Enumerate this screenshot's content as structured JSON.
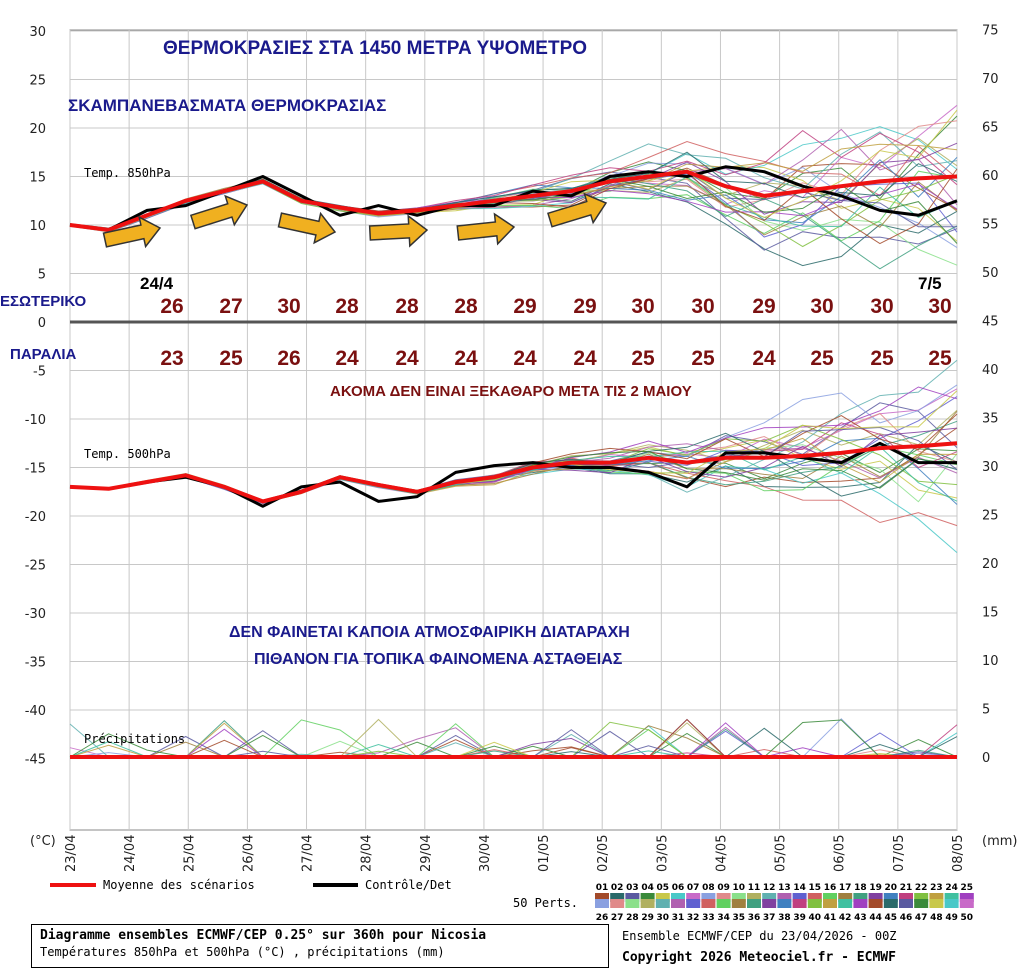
{
  "chart_data": {
    "type": "line",
    "title": "ΘΕΡΜΟΚΡΑΣΙΕΣ ΣΤΑ 1450 ΜΕΤΡΑ ΥΨΟΜΕΤΡΟ",
    "subtitle": "ΣΚΑΜΠΑΝΕΒΑΣΜΑΤΑ ΘΕΡΜΟΚΡΑΣΙΑΣ",
    "x_ticks": [
      "23/04",
      "24/04",
      "25/04",
      "26/04",
      "27/04",
      "28/04",
      "29/04",
      "30/04",
      "01/05",
      "02/05",
      "03/05",
      "04/05",
      "05/05",
      "06/05",
      "07/05",
      "08/05"
    ],
    "left_axis": {
      "unit": "(°C)",
      "ticks": [
        "30",
        "25",
        "20",
        "15",
        "10",
        "5",
        "0",
        "-5",
        "-10",
        "-15",
        "-20",
        "-25",
        "-30",
        "-35",
        "-40",
        "-45"
      ],
      "ylim": [
        -45,
        30
      ]
    },
    "right_axis": {
      "unit": "(mm)",
      "ticks": [
        "75",
        "70",
        "65",
        "60",
        "55",
        "50",
        "45",
        "40",
        "35",
        "30",
        "25",
        "20",
        "15",
        "10",
        "5",
        "0"
      ]
    },
    "panel_labels": {
      "t850": "Temp. 850hPa",
      "t500": "Temp. 500hPa",
      "precip": "Précipitations"
    },
    "series": [
      {
        "name": "Moyenne des scénarios",
        "color": "#ee1111",
        "t850": [
          [
            0,
            10
          ],
          [
            1,
            9.5
          ],
          [
            2,
            11
          ],
          [
            3,
            12.5
          ],
          [
            4,
            13.5
          ],
          [
            5,
            14.5
          ],
          [
            6,
            12.5
          ],
          [
            7,
            11.8
          ],
          [
            8,
            11.2
          ],
          [
            9,
            11.5
          ],
          [
            10,
            12
          ],
          [
            11,
            12.5
          ],
          [
            12,
            13
          ],
          [
            13,
            13.5
          ],
          [
            14,
            14.5
          ],
          [
            15,
            15
          ],
          [
            16,
            15.5
          ],
          [
            17,
            14
          ],
          [
            18,
            13
          ],
          [
            19,
            13.5
          ],
          [
            20,
            14
          ],
          [
            21,
            14.5
          ],
          [
            22,
            14.8
          ],
          [
            23,
            15
          ]
        ],
        "t500": [
          [
            0,
            -17
          ],
          [
            1,
            -17.2
          ],
          [
            2,
            -16.5
          ],
          [
            3,
            -15.8
          ],
          [
            4,
            -17
          ],
          [
            5,
            -18.5
          ],
          [
            6,
            -17.5
          ],
          [
            7,
            -16
          ],
          [
            8,
            -16.8
          ],
          [
            9,
            -17.5
          ],
          [
            10,
            -16.5
          ],
          [
            11,
            -16
          ],
          [
            12,
            -15
          ],
          [
            13,
            -14.5
          ],
          [
            14,
            -14.5
          ],
          [
            15,
            -14
          ],
          [
            16,
            -14.5
          ],
          [
            17,
            -14
          ],
          [
            18,
            -14
          ],
          [
            19,
            -13.8
          ],
          [
            20,
            -13.5
          ],
          [
            21,
            -13
          ],
          [
            22,
            -12.8
          ],
          [
            23,
            -12.5
          ]
        ],
        "precip": [
          [
            0,
            0
          ],
          [
            23,
            0
          ]
        ]
      },
      {
        "name": "Contrôle/Det",
        "color": "#000000",
        "t850": [
          [
            0,
            10
          ],
          [
            1,
            9.5
          ],
          [
            2,
            11.5
          ],
          [
            3,
            12
          ],
          [
            4,
            13.5
          ],
          [
            5,
            15
          ],
          [
            6,
            13
          ],
          [
            7,
            11
          ],
          [
            8,
            12
          ],
          [
            9,
            11
          ],
          [
            10,
            12
          ],
          [
            11,
            12
          ],
          [
            12,
            13.5
          ],
          [
            13,
            13
          ],
          [
            14,
            15
          ],
          [
            15,
            15.5
          ],
          [
            16,
            15
          ],
          [
            17,
            16
          ],
          [
            18,
            15.5
          ],
          [
            19,
            14
          ],
          [
            20,
            13
          ],
          [
            21,
            11.5
          ],
          [
            22,
            11
          ],
          [
            23,
            12.5
          ]
        ],
        "t500": [
          [
            0,
            -17
          ],
          [
            1,
            -17.2
          ],
          [
            2,
            -16.5
          ],
          [
            3,
            -16
          ],
          [
            4,
            -17
          ],
          [
            5,
            -19
          ],
          [
            6,
            -17
          ],
          [
            7,
            -16.5
          ],
          [
            8,
            -18.5
          ],
          [
            9,
            -18
          ],
          [
            10,
            -15.5
          ],
          [
            11,
            -14.8
          ],
          [
            12,
            -14.5
          ],
          [
            13,
            -15
          ],
          [
            14,
            -15
          ],
          [
            15,
            -15.5
          ],
          [
            16,
            -17
          ],
          [
            17,
            -13.5
          ],
          [
            18,
            -13.5
          ],
          [
            19,
            -14
          ],
          [
            20,
            -14.5
          ],
          [
            21,
            -12.5
          ],
          [
            22,
            -14.5
          ],
          [
            23,
            -14.5
          ]
        ],
        "precip": [
          [
            0,
            0
          ],
          [
            23,
            0
          ]
        ]
      }
    ],
    "ensemble_members": "50 Perts.",
    "member_ids_top": [
      "01",
      "02",
      "03",
      "04",
      "05",
      "06",
      "07",
      "08",
      "09",
      "10",
      "11",
      "12",
      "13",
      "14",
      "15",
      "16",
      "17",
      "18",
      "19",
      "20",
      "21",
      "22",
      "23",
      "24",
      "25"
    ],
    "member_ids_bottom": [
      "26",
      "27",
      "28",
      "29",
      "30",
      "31",
      "32",
      "33",
      "34",
      "35",
      "36",
      "37",
      "38",
      "39",
      "40",
      "41",
      "42",
      "43",
      "44",
      "45",
      "46",
      "47",
      "48",
      "49",
      "50"
    ],
    "member_colors": [
      "#a34a2a",
      "#2a6a6a",
      "#5a5aa0",
      "#3a8a3a",
      "#c8c84a",
      "#4ac8c8",
      "#c86ac8",
      "#8aa0e0",
      "#e08a8a",
      "#8ae08a",
      "#b0b060",
      "#60b0b0",
      "#b060b0",
      "#6060d0",
      "#d06060",
      "#60d060",
      "#a08040",
      "#40a080",
      "#8040a0",
      "#4080c0",
      "#c04080",
      "#80c040",
      "#c0a040",
      "#40c0a0",
      "#a040c0"
    ]
  },
  "annotations": {
    "date_start": "24/4",
    "date_end": "7/5",
    "row_inland_label": "ΕΣΩΤΕΡΙΚΟ",
    "row_inland": [
      "26",
      "27",
      "30",
      "28",
      "28",
      "28",
      "29",
      "29",
      "30",
      "30",
      "29",
      "30",
      "30",
      "30"
    ],
    "row_beach_label": "ΠΑΡΑΛΙΑ",
    "row_beach": [
      "23",
      "25",
      "26",
      "24",
      "24",
      "24",
      "24",
      "24",
      "25",
      "25",
      "24",
      "25",
      "25",
      "25"
    ],
    "uncertain_note": "ΑΚΟΜΑ ΔΕΝ ΕΙΝΑΙ ΞΕΚΑΘΑΡΟ ΜΕΤΑ ΤΙΣ 2 ΜΑΙΟΥ",
    "precip_note_1": "ΔΕΝ ΦΑΙΝΕΤΑΙ ΚΑΠΟΙΑ ΑΤΜΟΣΦΑΙΡΙΚΗ ΔΙΑΤΑΡΑΧΗ",
    "precip_note_2": "ΠΙΘΑΝΟΝ ΓΙΑ ΤΟΠΙΚΑ ΦΑΙΝΟΜΕΝΑ ΑΣΤΑΘΕΙΑΣ"
  },
  "footer": {
    "box_line1": "Diagramme ensembles ECMWF/CEP 0.25° sur 360h pour Nicosia",
    "box_line2": "Températures 850hPa et 500hPa (°C) , précipitations (mm)",
    "run_info": "Ensemble ECMWF/CEP du 23/04/2026 - 00Z",
    "copyright": "Copyright 2026 Meteociel.fr - ECMWF"
  }
}
